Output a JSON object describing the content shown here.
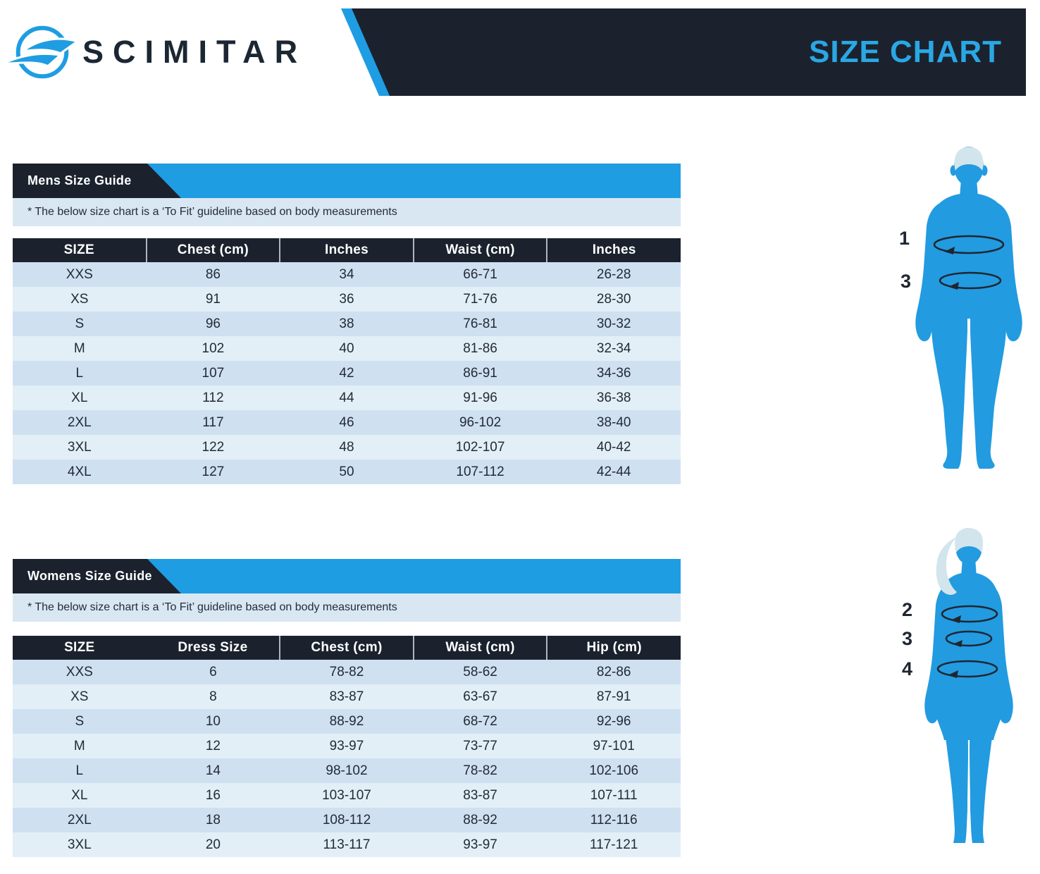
{
  "brand": {
    "name": "SCIMITAR"
  },
  "banner": {
    "title": "SIZE CHART"
  },
  "mens": {
    "title": "Mens Size Guide",
    "note": "* The below size chart is a ‘To Fit’ guideline based on body measurements",
    "columns": [
      "SIZE",
      "Chest (cm)",
      "Inches",
      "Waist (cm)",
      "Inches"
    ],
    "rows": [
      [
        "XXS",
        "86",
        "34",
        "66-71",
        "26-28"
      ],
      [
        "XS",
        "91",
        "36",
        "71-76",
        "28-30"
      ],
      [
        "S",
        "96",
        "38",
        "76-81",
        "30-32"
      ],
      [
        "M",
        "102",
        "40",
        "81-86",
        "32-34"
      ],
      [
        "L",
        "107",
        "42",
        "86-91",
        "34-36"
      ],
      [
        "XL",
        "112",
        "44",
        "91-96",
        "36-38"
      ],
      [
        "2XL",
        "117",
        "46",
        "96-102",
        "38-40"
      ],
      [
        "3XL",
        "122",
        "48",
        "102-107",
        "40-42"
      ],
      [
        "4XL",
        "127",
        "50",
        "107-112",
        "42-44"
      ]
    ]
  },
  "womens": {
    "title": "Womens Size Guide",
    "note": "* The below size chart is a ‘To Fit’ guideline based on body measurements",
    "columns": [
      "SIZE",
      "Dress Size",
      "Chest (cm)",
      "Waist (cm)",
      "Hip (cm)"
    ],
    "rows": [
      [
        "XXS",
        "6",
        "78-82",
        "58-62",
        "82-86"
      ],
      [
        "XS",
        "8",
        "83-87",
        "63-67",
        "87-91"
      ],
      [
        "S",
        "10",
        "88-92",
        "68-72",
        "92-96"
      ],
      [
        "M",
        "12",
        "93-97",
        "73-77",
        "97-101"
      ],
      [
        "L",
        "14",
        "98-102",
        "78-82",
        "102-106"
      ],
      [
        "XL",
        "16",
        "103-107",
        "83-87",
        "107-111"
      ],
      [
        "2XL",
        "18",
        "108-112",
        "88-92",
        "112-116"
      ],
      [
        "3XL",
        "20",
        "113-117",
        "93-97",
        "117-121"
      ]
    ]
  },
  "figures": {
    "male": {
      "labels": [
        "1",
        "3"
      ]
    },
    "female": {
      "labels": [
        "2",
        "3",
        "4"
      ]
    }
  },
  "colors": {
    "accent_blue": "#1f9de2",
    "dark_navy": "#1b222e",
    "title_blue": "#2aa7e5",
    "row_dark": "#cfe0f1",
    "row_light": "#e2eff7",
    "note_strip": "#d9e7f3",
    "figure_blue": "#229be0",
    "hair_blue": "#d3e5ec"
  }
}
